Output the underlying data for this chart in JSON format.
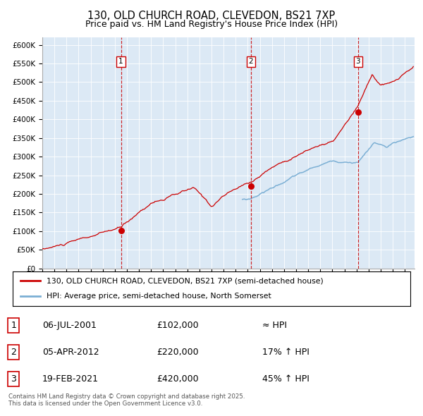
{
  "title": "130, OLD CHURCH ROAD, CLEVEDON, BS21 7XP",
  "subtitle": "Price paid vs. HM Land Registry's House Price Index (HPI)",
  "background_color": "#ffffff",
  "plot_bg_color": "#dce9f5",
  "red_line_color": "#cc0000",
  "blue_line_color": "#7bafd4",
  "sale_marker_color": "#cc0000",
  "dashed_line_color": "#cc0000",
  "sales": [
    {
      "date_num": 2001.51,
      "price": 102000,
      "label": "1"
    },
    {
      "date_num": 2012.26,
      "price": 220000,
      "label": "2"
    },
    {
      "date_num": 2021.12,
      "price": 420000,
      "label": "3"
    }
  ],
  "sale_dates_str": [
    "06-JUL-2001",
    "05-APR-2012",
    "19-FEB-2021"
  ],
  "sale_prices_str": [
    "£102,000",
    "£220,000",
    "£420,000"
  ],
  "sale_hpi_str": [
    "≈ HPI",
    "17% ↑ HPI",
    "45% ↑ HPI"
  ],
  "legend_red": "130, OLD CHURCH ROAD, CLEVEDON, BS21 7XP (semi-detached house)",
  "legend_blue": "HPI: Average price, semi-detached house, North Somerset",
  "footer": "Contains HM Land Registry data © Crown copyright and database right 2025.\nThis data is licensed under the Open Government Licence v3.0.",
  "ylim": [
    0,
    620000
  ],
  "ytick_step": 50000,
  "xlim_start": 1995,
  "xlim_end": 2025.8
}
